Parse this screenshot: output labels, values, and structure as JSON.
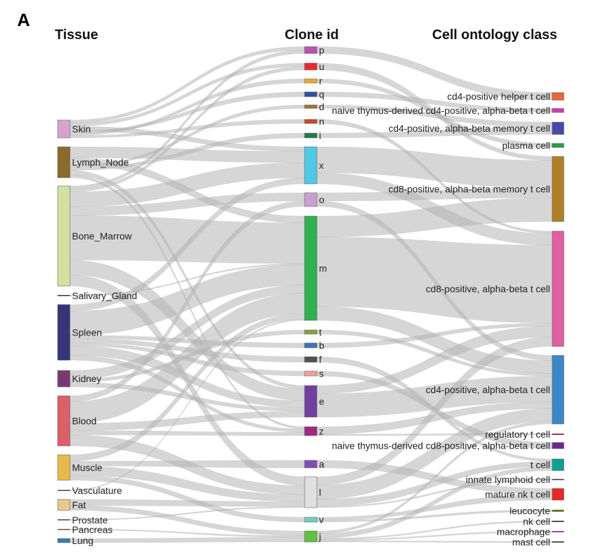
{
  "panel_label": "A",
  "headers": {
    "tissue": "Tissue",
    "clone": "Clone id",
    "cell": "Cell ontology class"
  },
  "link_color": "#b4b4b4",
  "tissues": [
    {
      "name": "Skin",
      "color": "#d6a3cf"
    },
    {
      "name": "Lymph_Node",
      "color": "#8b6a2e"
    },
    {
      "name": "Bone_Marrow",
      "color": "#d3e0a0"
    },
    {
      "name": "Salivary_Gland",
      "color": "#333333"
    },
    {
      "name": "Spleen",
      "color": "#35357a"
    },
    {
      "name": "Kidney",
      "color": "#7a3a6e"
    },
    {
      "name": "Blood",
      "color": "#dc5f6a"
    },
    {
      "name": "Muscle",
      "color": "#e8b84a"
    },
    {
      "name": "Vasculature",
      "color": "#6a2a40"
    },
    {
      "name": "Fat",
      "color": "#e8c890"
    },
    {
      "name": "Prostate",
      "color": "#444444"
    },
    {
      "name": "Pancreas",
      "color": "#555555"
    },
    {
      "name": "Lung",
      "color": "#3a7ab8"
    }
  ],
  "clones": [
    {
      "name": "p",
      "color": "#c050b0"
    },
    {
      "name": "u",
      "color": "#e82830"
    },
    {
      "name": "r",
      "color": "#f0a828"
    },
    {
      "name": "q",
      "color": "#3050a0"
    },
    {
      "name": "d",
      "color": "#9a7a28"
    },
    {
      "name": "n",
      "color": "#c84828"
    },
    {
      "name": "i",
      "color": "#207a50"
    },
    {
      "name": "x",
      "color": "#50c8e8"
    },
    {
      "name": "o",
      "color": "#c8a0d0"
    },
    {
      "name": "m",
      "color": "#30b050"
    },
    {
      "name": "t",
      "color": "#8aa040"
    },
    {
      "name": "b",
      "color": "#4070c0"
    },
    {
      "name": "f",
      "color": "#505050"
    },
    {
      "name": "s",
      "color": "#f0a0a0"
    },
    {
      "name": "e",
      "color": "#7040a0"
    },
    {
      "name": "z",
      "color": "#a02880"
    },
    {
      "name": "a",
      "color": "#8050b0"
    },
    {
      "name": "l",
      "color": "#e0e0e0"
    },
    {
      "name": "v",
      "color": "#70d0c0"
    },
    {
      "name": "j",
      "color": "#60c040"
    }
  ],
  "cells": [
    {
      "name": "cd4-positive helper t cell",
      "color": "#e86838"
    },
    {
      "name": "naive thymus-derived cd4-positive, alpha-beta t cell",
      "color": "#d040b0"
    },
    {
      "name": "cd4-positive, alpha-beta memory t cell",
      "color": "#4848a8"
    },
    {
      "name": "plasma cell",
      "color": "#20a050"
    },
    {
      "name": "cd8-positive, alpha-beta memory t cell",
      "color": "#b08028"
    },
    {
      "name": "cd8-positive, alpha-beta t cell",
      "color": "#e060a0"
    },
    {
      "name": "cd4-positive, alpha-beta t cell",
      "color": "#3a88c8"
    },
    {
      "name": "regulatory t cell",
      "color": "#a03060"
    },
    {
      "name": "naive thymus-derived cd8-positive, alpha-beta t cell",
      "color": "#6a2890"
    },
    {
      "name": "t cell",
      "color": "#10a090"
    },
    {
      "name": "innate lymphoid cell",
      "color": "#706070"
    },
    {
      "name": "mature nk t cell",
      "color": "#e82828"
    },
    {
      "name": "leucocyte",
      "color": "#6a7a28"
    },
    {
      "name": "nk cell",
      "color": "#505050"
    },
    {
      "name": "macrophage",
      "color": "#a040b0"
    },
    {
      "name": "mast cell",
      "color": "#505050"
    }
  ],
  "links_tissue_clone": [
    [
      "Skin",
      "p",
      4
    ],
    [
      "Skin",
      "u",
      4
    ],
    [
      "Skin",
      "x",
      6
    ],
    [
      "Skin",
      "q",
      3
    ],
    [
      "Skin",
      "r",
      3
    ],
    [
      "Skin",
      "n",
      3
    ],
    [
      "Lymph_Node",
      "x",
      15
    ],
    [
      "Lymph_Node",
      "m",
      10
    ],
    [
      "Lymph_Node",
      "d",
      3
    ],
    [
      "Lymph_Node",
      "i",
      4
    ],
    [
      "Lymph_Node",
      "e",
      6
    ],
    [
      "Lymph_Node",
      "z",
      4
    ],
    [
      "Bone_Marrow",
      "p",
      4
    ],
    [
      "Bone_Marrow",
      "u",
      4
    ],
    [
      "Bone_Marrow",
      "x",
      20
    ],
    [
      "Bone_Marrow",
      "o",
      12
    ],
    [
      "Bone_Marrow",
      "m",
      60
    ],
    [
      "Bone_Marrow",
      "e",
      20
    ],
    [
      "Bone_Marrow",
      "l",
      15
    ],
    [
      "Salivary_Gland",
      "m",
      2
    ],
    [
      "Spleen",
      "x",
      8
    ],
    [
      "Spleen",
      "m",
      30
    ],
    [
      "Spleen",
      "b",
      4
    ],
    [
      "Spleen",
      "f",
      5
    ],
    [
      "Spleen",
      "s",
      4
    ],
    [
      "Spleen",
      "e",
      12
    ],
    [
      "Spleen",
      "z",
      6
    ],
    [
      "Kidney",
      "m",
      12
    ],
    [
      "Kidney",
      "t",
      4
    ],
    [
      "Kidney",
      "e",
      6
    ],
    [
      "Blood",
      "o",
      8
    ],
    [
      "Blood",
      "m",
      30
    ],
    [
      "Blood",
      "e",
      10
    ],
    [
      "Blood",
      "z",
      6
    ],
    [
      "Blood",
      "l",
      15
    ],
    [
      "Muscle",
      "m",
      8
    ],
    [
      "Muscle",
      "a",
      6
    ],
    [
      "Muscle",
      "l",
      12
    ],
    [
      "Muscle",
      "v",
      6
    ],
    [
      "Vasculature",
      "m",
      2
    ],
    [
      "Fat",
      "l",
      8
    ],
    [
      "Fat",
      "j",
      6
    ],
    [
      "Prostate",
      "l",
      2
    ],
    [
      "Pancreas",
      "j",
      2
    ],
    [
      "Lung",
      "j",
      6
    ]
  ],
  "links_clone_cell": [
    [
      "p",
      "cd4-positive helper t cell",
      6
    ],
    [
      "u",
      "cd8-positive, alpha-beta memory t cell",
      5
    ],
    [
      "r",
      "plasma cell",
      3
    ],
    [
      "q",
      "naive thymus-derived cd4-positive, alpha-beta t cell",
      3
    ],
    [
      "d",
      "cd4-positive, alpha-beta memory t cell",
      3
    ],
    [
      "n",
      "cd8-positive, alpha-beta t cell",
      3
    ],
    [
      "i",
      "cd4-positive, alpha-beta memory t cell",
      4
    ],
    [
      "x",
      "cd8-positive, alpha-beta memory t cell",
      35
    ],
    [
      "x",
      "cd8-positive, alpha-beta t cell",
      15
    ],
    [
      "o",
      "cd8-positive, alpha-beta memory t cell",
      12
    ],
    [
      "o",
      "cd4-positive, alpha-beta t cell",
      8
    ],
    [
      "m",
      "cd8-positive, alpha-beta memory t cell",
      30
    ],
    [
      "m",
      "cd8-positive, alpha-beta t cell",
      100
    ],
    [
      "m",
      "cd4-positive, alpha-beta t cell",
      20
    ],
    [
      "t",
      "cd4-positive, alpha-beta t cell",
      4
    ],
    [
      "b",
      "cd8-positive, alpha-beta t cell",
      4
    ],
    [
      "f",
      "t cell",
      5
    ],
    [
      "s",
      "naive thymus-derived cd8-positive, alpha-beta t cell",
      4
    ],
    [
      "e",
      "cd8-positive, alpha-beta t cell",
      14
    ],
    [
      "e",
      "cd4-positive, alpha-beta t cell",
      40
    ],
    [
      "z",
      "cd4-positive, alpha-beta t cell",
      10
    ],
    [
      "z",
      "regulatory t cell",
      2
    ],
    [
      "a",
      "mature nk t cell",
      6
    ],
    [
      "l",
      "cd8-positive, alpha-beta t cell",
      12
    ],
    [
      "l",
      "cd4-positive, alpha-beta t cell",
      20
    ],
    [
      "l",
      "t cell",
      10
    ],
    [
      "l",
      "innate lymphoid cell",
      2
    ],
    [
      "v",
      "mature nk t cell",
      6
    ],
    [
      "v",
      "leucocyte",
      4
    ],
    [
      "j",
      "cd4-positive, alpha-beta t cell",
      4
    ],
    [
      "j",
      "t cell",
      8
    ],
    [
      "j",
      "nk cell",
      2
    ],
    [
      "j",
      "macrophage",
      2
    ],
    [
      "j",
      "mast cell",
      2
    ]
  ]
}
